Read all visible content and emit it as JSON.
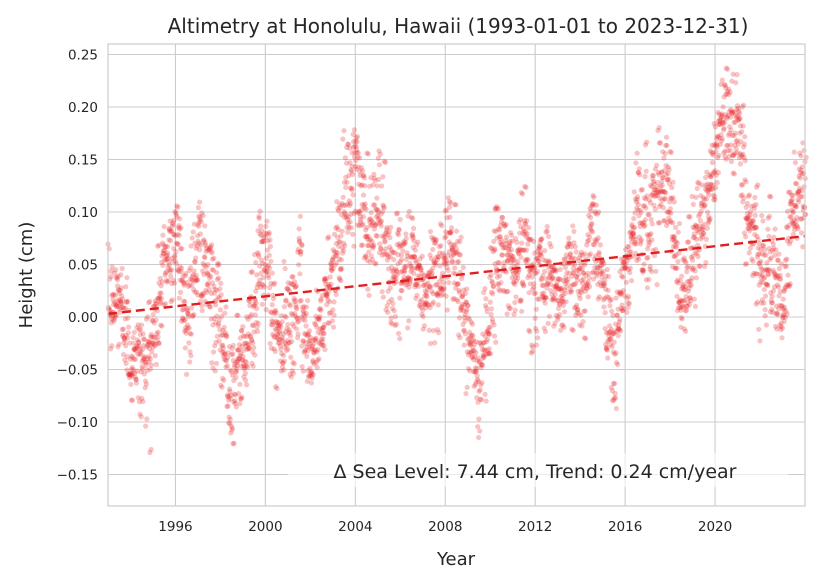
{
  "chart_data": {
    "type": "scatter",
    "title": "Altimetry at Honolulu, Hawaii (1993-01-01 to 2023-12-31)",
    "xlabel": "Year",
    "ylabel": "Height (cm)",
    "xlim": [
      1993.0,
      2024.0
    ],
    "ylim": [
      -0.18,
      0.26
    ],
    "xticks": [
      1996,
      2000,
      2004,
      2008,
      2012,
      2016,
      2020
    ],
    "xtick_labels": [
      "1996",
      "2000",
      "2004",
      "2008",
      "2012",
      "2016",
      "2020"
    ],
    "yticks": [
      -0.15,
      -0.1,
      -0.05,
      0.0,
      0.05,
      0.1,
      0.15,
      0.2,
      0.25
    ],
    "ytick_labels": [
      "−0.15",
      "−0.10",
      "−0.05",
      "0.00",
      "0.05",
      "0.10",
      "0.15",
      "0.20",
      "0.25"
    ],
    "grid": true,
    "colors": {
      "points": "#e8262a",
      "trend": "#e02020"
    },
    "annotation": "Δ Sea Level: 7.44 cm, Trend: 0.24 cm/year",
    "trend_line": {
      "x": [
        1993.0,
        2024.0
      ],
      "y": [
        0.003,
        0.077
      ]
    },
    "series_key_points": {
      "x": [
        1993.0,
        1993.5,
        1994.0,
        1994.5,
        1995.0,
        1995.5,
        1996.0,
        1996.5,
        1997.0,
        1997.5,
        1998.0,
        1998.5,
        1999.0,
        1999.5,
        2000.0,
        2000.5,
        2001.0,
        2001.5,
        2002.0,
        2002.5,
        2003.0,
        2003.5,
        2004.0,
        2004.5,
        2005.0,
        2005.5,
        2006.0,
        2006.5,
        2007.0,
        2007.5,
        2008.0,
        2008.5,
        2009.0,
        2009.5,
        2010.0,
        2010.5,
        2011.0,
        2011.5,
        2012.0,
        2012.5,
        2013.0,
        2013.5,
        2014.0,
        2014.5,
        2015.0,
        2015.5,
        2016.0,
        2016.5,
        2017.0,
        2017.5,
        2018.0,
        2018.5,
        2019.0,
        2019.5,
        2020.0,
        2020.5,
        2021.0,
        2021.5,
        2022.0,
        2022.5,
        2023.0,
        2023.5,
        2024.0
      ],
      "y": [
        0.0,
        0.02,
        -0.03,
        -0.05,
        -0.02,
        0.05,
        0.08,
        0.0,
        0.07,
        0.03,
        -0.02,
        -0.06,
        -0.04,
        0.02,
        0.06,
        -0.03,
        -0.01,
        0.03,
        -0.04,
        0.0,
        0.05,
        0.1,
        0.14,
        0.08,
        0.11,
        0.05,
        0.03,
        0.06,
        0.02,
        0.04,
        0.06,
        0.05,
        -0.02,
        -0.07,
        0.02,
        0.08,
        0.04,
        0.07,
        0.03,
        0.05,
        0.01,
        0.06,
        0.02,
        0.09,
        0.03,
        -0.03,
        0.04,
        0.1,
        0.08,
        0.14,
        0.12,
        0.0,
        0.06,
        0.1,
        0.15,
        0.2,
        0.18,
        0.08,
        0.06,
        0.04,
        0.01,
        0.12,
        0.12
      ]
    },
    "series_noise": {
      "sd": 0.025
    }
  }
}
